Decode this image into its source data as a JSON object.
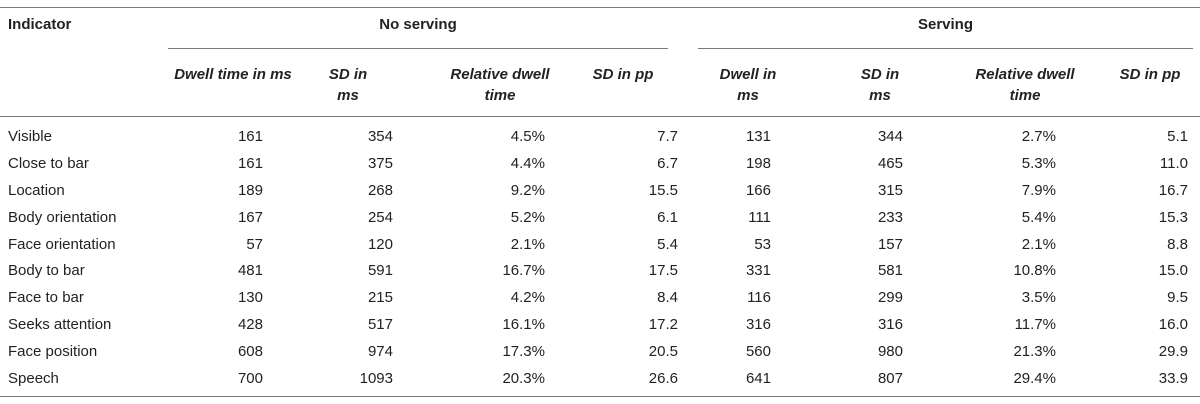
{
  "headers": {
    "indicator": "Indicator",
    "no_serving": "No serving",
    "serving": "Serving"
  },
  "subheaders": {
    "no_serving": [
      "Dwell time in ms",
      "SD in ms",
      "Relative dwell time",
      "SD in pp"
    ],
    "serving": [
      "Dwell in ms",
      "SD in ms",
      "Relative dwell time",
      "SD in pp"
    ]
  },
  "rows": [
    {
      "label": "Visible",
      "ns_dwell": "161",
      "ns_sd": "354",
      "ns_rel": "4.5%",
      "ns_sdpp": "7.7",
      "s_dwell": "131",
      "s_sd": "344",
      "s_rel": "2.7%",
      "s_sdpp": "5.1"
    },
    {
      "label": "Close to bar",
      "ns_dwell": "161",
      "ns_sd": "375",
      "ns_rel": "4.4%",
      "ns_sdpp": "6.7",
      "s_dwell": "198",
      "s_sd": "465",
      "s_rel": "5.3%",
      "s_sdpp": "11.0"
    },
    {
      "label": "Location",
      "ns_dwell": "189",
      "ns_sd": "268",
      "ns_rel": "9.2%",
      "ns_sdpp": "15.5",
      "s_dwell": "166",
      "s_sd": "315",
      "s_rel": "7.9%",
      "s_sdpp": "16.7"
    },
    {
      "label": "Body orientation",
      "ns_dwell": "167",
      "ns_sd": "254",
      "ns_rel": "5.2%",
      "ns_sdpp": "6.1",
      "s_dwell": "111",
      "s_sd": "233",
      "s_rel": "5.4%",
      "s_sdpp": "15.3"
    },
    {
      "label": "Face orientation",
      "ns_dwell": "57",
      "ns_sd": "120",
      "ns_rel": "2.1%",
      "ns_sdpp": "5.4",
      "s_dwell": "53",
      "s_sd": "157",
      "s_rel": "2.1%",
      "s_sdpp": "8.8"
    },
    {
      "label": "Body to bar",
      "ns_dwell": "481",
      "ns_sd": "591",
      "ns_rel": "16.7%",
      "ns_sdpp": "17.5",
      "s_dwell": "331",
      "s_sd": "581",
      "s_rel": "10.8%",
      "s_sdpp": "15.0"
    },
    {
      "label": "Face to bar",
      "ns_dwell": "130",
      "ns_sd": "215",
      "ns_rel": "4.2%",
      "ns_sdpp": "8.4",
      "s_dwell": "116",
      "s_sd": "299",
      "s_rel": "3.5%",
      "s_sdpp": "9.5"
    },
    {
      "label": "Seeks attention",
      "ns_dwell": "428",
      "ns_sd": "517",
      "ns_rel": "16.1%",
      "ns_sdpp": "17.2",
      "s_dwell": "316",
      "s_sd": "316",
      "s_rel": "11.7%",
      "s_sdpp": "16.0"
    },
    {
      "label": "Face position",
      "ns_dwell": "608",
      "ns_sd": "974",
      "ns_rel": "17.3%",
      "ns_sdpp": "20.5",
      "s_dwell": "560",
      "s_sd": "980",
      "s_rel": "21.3%",
      "s_sdpp": "29.9"
    },
    {
      "label": "Speech",
      "ns_dwell": "700",
      "ns_sd": "1093",
      "ns_rel": "20.3%",
      "ns_sdpp": "26.6",
      "s_dwell": "641",
      "s_sd": "807",
      "s_rel": "29.4%",
      "s_sdpp": "33.9"
    }
  ]
}
